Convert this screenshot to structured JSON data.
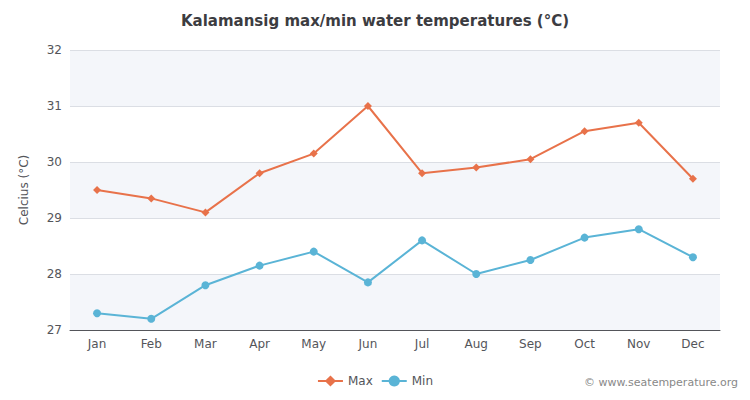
{
  "chart_data": {
    "type": "line",
    "title": "Kalamansig max/min water temperatures (°C)",
    "ylabel": "Celcius (°C)",
    "annotation": "© www.seatemperature.org",
    "categories": [
      "Jan",
      "Feb",
      "Mar",
      "Apr",
      "May",
      "Jun",
      "Jul",
      "Aug",
      "Sep",
      "Oct",
      "Nov",
      "Dec"
    ],
    "series": [
      {
        "name": "Max",
        "color": "#e8724a",
        "marker": "diamond",
        "values": [
          29.5,
          29.35,
          29.1,
          29.8,
          30.15,
          31.0,
          29.8,
          29.9,
          30.05,
          30.55,
          30.7,
          29.7
        ]
      },
      {
        "name": "Min",
        "color": "#5ab4d6",
        "marker": "circle",
        "values": [
          27.3,
          27.2,
          27.8,
          28.15,
          28.4,
          27.85,
          28.6,
          28.0,
          28.25,
          28.65,
          28.8,
          28.3
        ]
      }
    ],
    "ylim": [
      27,
      32
    ],
    "yticks": [
      27,
      28,
      29,
      30,
      31,
      32
    ],
    "grid": true,
    "legend": "bottom"
  }
}
